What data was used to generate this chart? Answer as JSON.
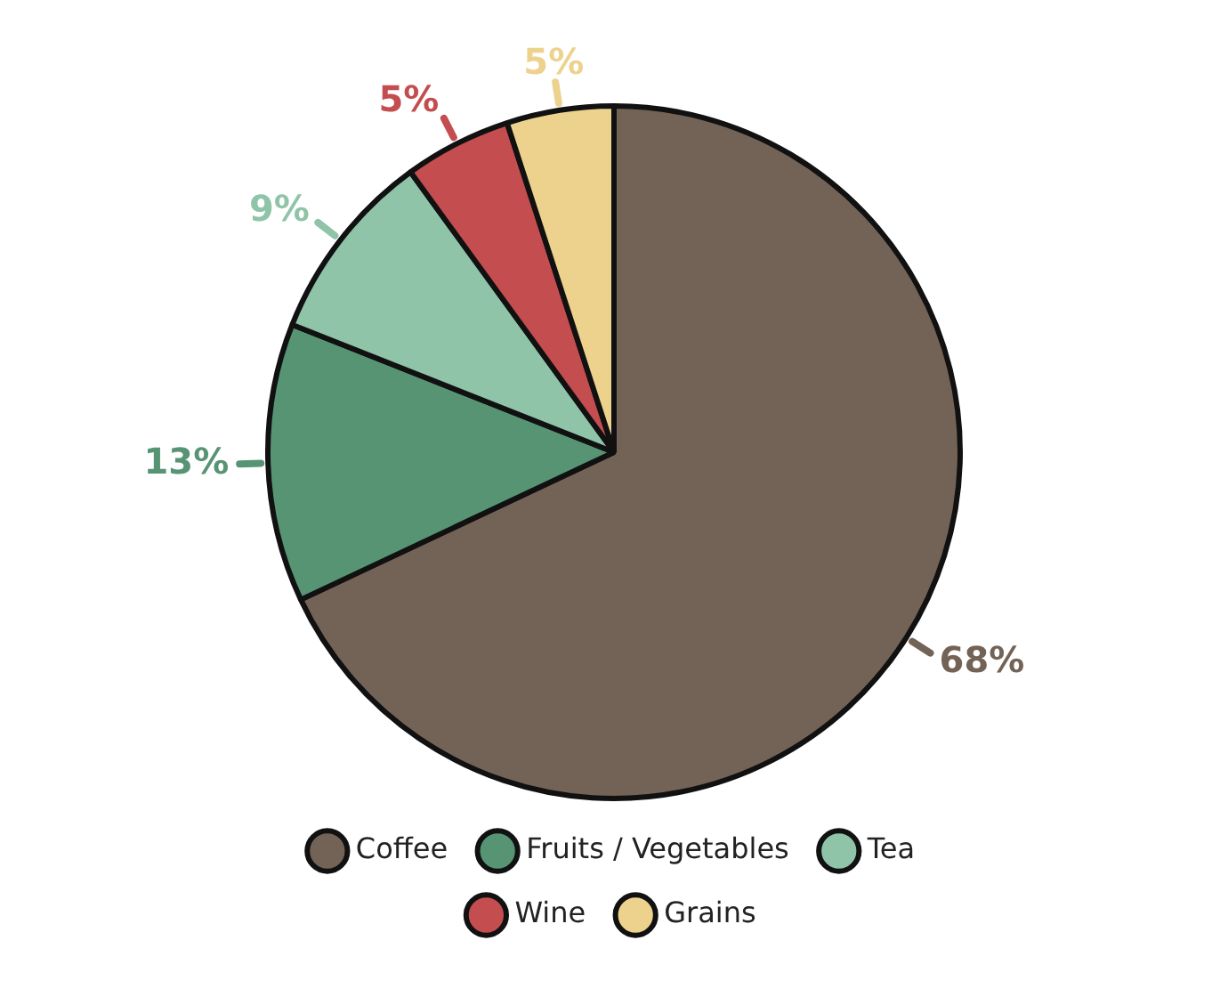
{
  "chart_data": {
    "type": "pie",
    "categories": [
      "Coffee",
      "Fruits / Vegetables",
      "Tea",
      "Wine",
      "Grains"
    ],
    "values": [
      68,
      13,
      9,
      5,
      5
    ],
    "colors": [
      "#736357",
      "#579474",
      "#8fc4a8",
      "#c44d4f",
      "#edd28e"
    ],
    "value_labels": [
      "68%",
      "13%",
      "9%",
      "5%",
      "5%"
    ],
    "legend": "bottom"
  }
}
